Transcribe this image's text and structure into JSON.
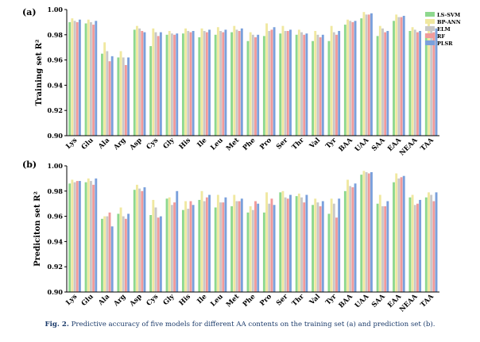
{
  "chart_data": [
    {
      "type": "bar",
      "panel_label": "(a)",
      "ylabel": "Training set R²",
      "ylim": [
        0.9,
        1.0
      ],
      "yticks": [
        "0.90",
        "0.92",
        "0.94",
        "0.96",
        "0.98",
        "1.00"
      ],
      "grid": false,
      "legend_position": "top-right",
      "categories": [
        "Lys",
        "Glu",
        "Ala",
        "Arg",
        "Asp",
        "Cys",
        "Gly",
        "His",
        "Ile",
        "Leu",
        "Met",
        "Phe",
        "Pro",
        "Ser",
        "Thr",
        "Val",
        "Tyr",
        "BAA",
        "UAA",
        "SAA",
        "EAA",
        "NEAA",
        "TAA"
      ],
      "series": [
        {
          "name": "LS-SVM",
          "color": "#8ed88e",
          "values": [
            0.99,
            0.989,
            0.965,
            0.962,
            0.984,
            0.971,
            0.98,
            0.981,
            0.978,
            0.98,
            0.982,
            0.975,
            0.979,
            0.981,
            0.98,
            0.975,
            0.975,
            0.988,
            0.993,
            0.979,
            0.991,
            0.983,
            0.981
          ]
        },
        {
          "name": "BP-ANN",
          "color": "#f0e8a0",
          "values": [
            0.993,
            0.992,
            0.974,
            0.967,
            0.987,
            0.985,
            0.983,
            0.985,
            0.985,
            0.986,
            0.987,
            0.982,
            0.989,
            0.987,
            0.984,
            0.983,
            0.987,
            0.992,
            0.998,
            0.987,
            0.996,
            0.986,
            0.989
          ]
        },
        {
          "name": "ELM",
          "color": "#c8c8c8",
          "values": [
            0.991,
            0.99,
            0.967,
            0.962,
            0.985,
            0.982,
            0.981,
            0.983,
            0.983,
            0.983,
            0.984,
            0.98,
            0.983,
            0.983,
            0.982,
            0.98,
            0.982,
            0.991,
            0.996,
            0.985,
            0.994,
            0.984,
            0.985
          ]
        },
        {
          "name": "RF",
          "color": "#f09a9a",
          "values": [
            0.99,
            0.988,
            0.959,
            0.956,
            0.983,
            0.979,
            0.98,
            0.982,
            0.982,
            0.982,
            0.983,
            0.978,
            0.984,
            0.983,
            0.98,
            0.978,
            0.98,
            0.99,
            0.996,
            0.982,
            0.994,
            0.982,
            0.982
          ]
        },
        {
          "name": "PLSR",
          "color": "#7aa0dc",
          "values": [
            0.992,
            0.991,
            0.963,
            0.962,
            0.982,
            0.982,
            0.981,
            0.983,
            0.984,
            0.984,
            0.985,
            0.98,
            0.986,
            0.984,
            0.981,
            0.98,
            0.983,
            0.991,
            0.997,
            0.983,
            0.995,
            0.983,
            0.985
          ]
        }
      ]
    },
    {
      "type": "bar",
      "panel_label": "(b)",
      "ylabel": "Prediciton set R²",
      "ylim": [
        0.9,
        1.0
      ],
      "yticks": [
        "0.90",
        "0.92",
        "0.94",
        "0.96",
        "0.98",
        "1.00"
      ],
      "grid": false,
      "categories": [
        "Lys",
        "Glu",
        "Ala",
        "Arg",
        "Asp",
        "Cys",
        "Gly",
        "His",
        "Ile",
        "Leu",
        "Met",
        "Phe",
        "Pro",
        "Ser",
        "Thr",
        "Val",
        "Tyr",
        "BAA",
        "UAA",
        "SAA",
        "EAA",
        "NEAA",
        "TAA"
      ],
      "series": [
        {
          "name": "LS-SVM",
          "color": "#8ed88e",
          "values": [
            0.986,
            0.987,
            0.958,
            0.962,
            0.981,
            0.961,
            0.974,
            0.965,
            0.973,
            0.967,
            0.968,
            0.963,
            0.963,
            0.979,
            0.976,
            0.969,
            0.962,
            0.98,
            0.993,
            0.97,
            0.987,
            0.975,
            0.975
          ]
        },
        {
          "name": "BP-ANN",
          "color": "#f0e8a0",
          "values": [
            0.989,
            0.99,
            0.96,
            0.967,
            0.985,
            0.973,
            0.975,
            0.972,
            0.98,
            0.977,
            0.977,
            0.968,
            0.979,
            0.98,
            0.978,
            0.974,
            0.974,
            0.989,
            0.996,
            0.977,
            0.994,
            0.977,
            0.979
          ]
        },
        {
          "name": "ELM",
          "color": "#c8c8c8",
          "values": [
            0.987,
            0.988,
            0.96,
            0.96,
            0.982,
            0.967,
            0.969,
            0.966,
            0.972,
            0.971,
            0.972,
            0.965,
            0.97,
            0.975,
            0.975,
            0.971,
            0.97,
            0.984,
            0.995,
            0.968,
            0.99,
            0.969,
            0.977
          ]
        },
        {
          "name": "RF",
          "color": "#f09a9a",
          "values": [
            0.988,
            0.985,
            0.963,
            0.958,
            0.98,
            0.959,
            0.971,
            0.972,
            0.975,
            0.971,
            0.972,
            0.972,
            0.974,
            0.974,
            0.971,
            0.968,
            0.959,
            0.983,
            0.994,
            0.968,
            0.991,
            0.97,
            0.972
          ]
        },
        {
          "name": "PLSR",
          "color": "#7aa0dc",
          "values": [
            0.988,
            0.99,
            0.952,
            0.962,
            0.983,
            0.96,
            0.98,
            0.969,
            0.977,
            0.975,
            0.974,
            0.97,
            0.969,
            0.977,
            0.977,
            0.972,
            0.974,
            0.986,
            0.995,
            0.972,
            0.992,
            0.973,
            0.979
          ]
        }
      ]
    }
  ],
  "caption": {
    "label": "Fig. 2.",
    "text": "Predictive accuracy of five models for different AA contents on the training set (a) and prediction set (b)."
  }
}
